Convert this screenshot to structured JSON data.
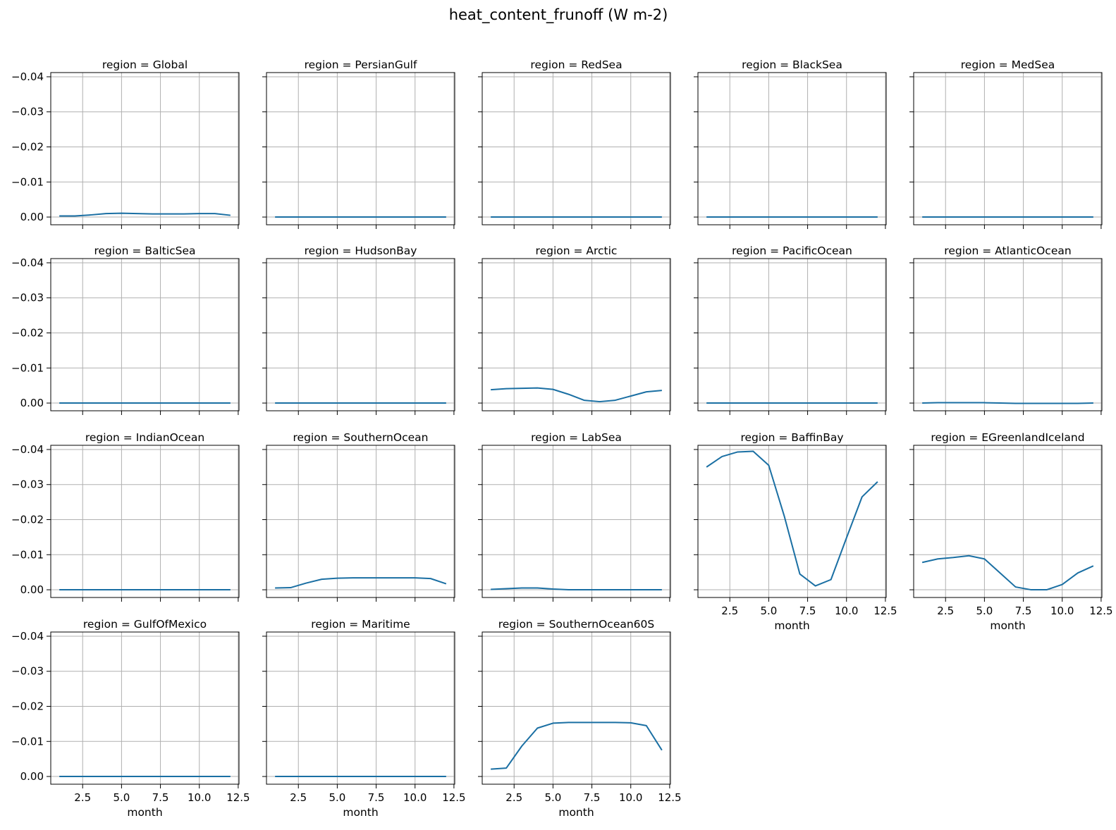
{
  "figure": {
    "title": "heat_content_frunoff (W m-2)"
  },
  "chart_data": {
    "type": "line",
    "title": "heat_content_frunoff (W m-2)",
    "xlabel": "month",
    "ylabel": "",
    "layout": {
      "rows": 4,
      "cols": 5,
      "sharex": true,
      "sharey": true
    },
    "x": [
      1,
      2,
      3,
      4,
      5,
      6,
      7,
      8,
      9,
      10,
      11,
      12
    ],
    "xlim": [
      0.45,
      12.55
    ],
    "ylim": [
      0.0022,
      -0.0412
    ],
    "yaxis_inverted": true,
    "xticks": [
      2.5,
      5.0,
      7.5,
      10.0,
      12.5
    ],
    "xtick_labels": [
      "2.5",
      "5.0",
      "7.5",
      "10.0",
      "12.5"
    ],
    "yticks": [
      -0.04,
      -0.03,
      -0.02,
      -0.01,
      0.0
    ],
    "ytick_labels": [
      "−0.04",
      "−0.03",
      "−0.02",
      "−0.01",
      "0.00"
    ],
    "grid": true,
    "line_color": "#1a6fa3",
    "panels": [
      {
        "title": "region = Global",
        "values": [
          -0.0003,
          -0.0003,
          -0.0006,
          -0.001,
          -0.0011,
          -0.001,
          -0.0009,
          -0.0009,
          -0.0009,
          -0.001,
          -0.001,
          -0.0005
        ]
      },
      {
        "title": "region = PersianGulf",
        "values": [
          0,
          0,
          0,
          0,
          0,
          0,
          0,
          0,
          0,
          0,
          0,
          0
        ]
      },
      {
        "title": "region = RedSea",
        "values": [
          0,
          0,
          0,
          0,
          0,
          0,
          0,
          0,
          0,
          0,
          0,
          0
        ]
      },
      {
        "title": "region = BlackSea",
        "values": [
          0,
          0,
          0,
          0,
          0,
          0,
          0,
          0,
          0,
          0,
          0,
          0
        ]
      },
      {
        "title": "region = MedSea",
        "values": [
          0,
          0,
          0,
          0,
          0,
          0,
          0,
          0,
          0,
          0,
          0,
          0
        ]
      },
      {
        "title": "region = BalticSea",
        "values": [
          0,
          0,
          0,
          0,
          0,
          0,
          0,
          0,
          0,
          0,
          0,
          0
        ]
      },
      {
        "title": "region = HudsonBay",
        "values": [
          0,
          0,
          0,
          0,
          0,
          0,
          0,
          0,
          0,
          0,
          0,
          0
        ]
      },
      {
        "title": "region = Arctic",
        "values": [
          -0.0038,
          -0.0041,
          -0.0042,
          -0.0043,
          -0.0039,
          -0.0025,
          -0.0008,
          -0.0004,
          -0.0008,
          -0.002,
          -0.0032,
          -0.0036
        ]
      },
      {
        "title": "region = PacificOcean",
        "values": [
          0,
          0,
          0,
          0,
          0,
          0,
          0,
          0,
          0,
          0,
          0,
          0
        ]
      },
      {
        "title": "region = AtlanticOcean",
        "values": [
          0,
          -0.0001,
          -0.0001,
          -0.0001,
          -0.0001,
          0,
          0.0001,
          0.0001,
          0.0001,
          0.0001,
          0.0001,
          0
        ]
      },
      {
        "title": "region = IndianOcean",
        "values": [
          0,
          0,
          0,
          0,
          0,
          0,
          0,
          0,
          0,
          0,
          0,
          0
        ]
      },
      {
        "title": "region = SouthernOcean",
        "values": [
          -0.0005,
          -0.0006,
          -0.0019,
          -0.003,
          -0.0033,
          -0.0034,
          -0.0034,
          -0.0034,
          -0.0034,
          -0.0034,
          -0.0032,
          -0.0017
        ]
      },
      {
        "title": "region = LabSea",
        "values": [
          -0.0001,
          -0.0003,
          -0.0005,
          -0.0005,
          -0.0002,
          0,
          0,
          0,
          0,
          0,
          0,
          0
        ]
      },
      {
        "title": "region = BaffinBay",
        "values": [
          -0.035,
          -0.038,
          -0.0393,
          -0.0395,
          -0.0355,
          -0.021,
          -0.0045,
          -0.0011,
          -0.0029,
          -0.0148,
          -0.0265,
          -0.0308
        ]
      },
      {
        "title": "region = EGreenlandIceland",
        "values": [
          -0.0078,
          -0.0088,
          -0.0092,
          -0.0097,
          -0.0088,
          -0.0048,
          -0.0008,
          0,
          0,
          -0.0015,
          -0.0048,
          -0.0068
        ]
      },
      {
        "title": "region = GulfOfMexico",
        "values": [
          0,
          0,
          0,
          0,
          0,
          0,
          0,
          0,
          0,
          0,
          0,
          0
        ]
      },
      {
        "title": "region = Maritime",
        "values": [
          0,
          0,
          0,
          0,
          0,
          0,
          0,
          0,
          0,
          0,
          0,
          0
        ]
      },
      {
        "title": "region = SouthernOcean60S",
        "values": [
          -0.0021,
          -0.0024,
          -0.0087,
          -0.0138,
          -0.0152,
          -0.0154,
          -0.0154,
          -0.0154,
          -0.0154,
          -0.0153,
          -0.0145,
          -0.0075
        ]
      }
    ]
  }
}
